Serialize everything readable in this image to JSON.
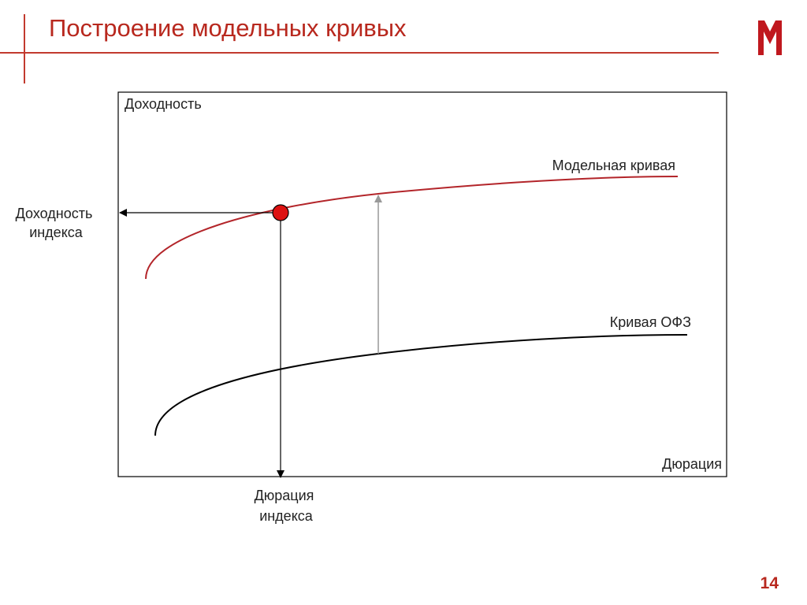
{
  "header": {
    "title": "Построение модельных кривых",
    "page_number": "14"
  },
  "colors": {
    "accent": "#b8281e",
    "model_curve": "#b3252a",
    "ofz_curve": "#000000",
    "shift_arrow": "#999999",
    "point_fill": "#dd1111"
  },
  "diagram": {
    "y_axis_label": "Доходность",
    "x_axis_label": "Дюрация",
    "model_curve_label": "Модельная кривая",
    "ofz_curve_label": "Кривая ОФЗ",
    "index_yield_label": [
      "Доходность",
      "индекса"
    ],
    "index_duration_label": [
      "Дюрация",
      "индекса"
    ]
  }
}
